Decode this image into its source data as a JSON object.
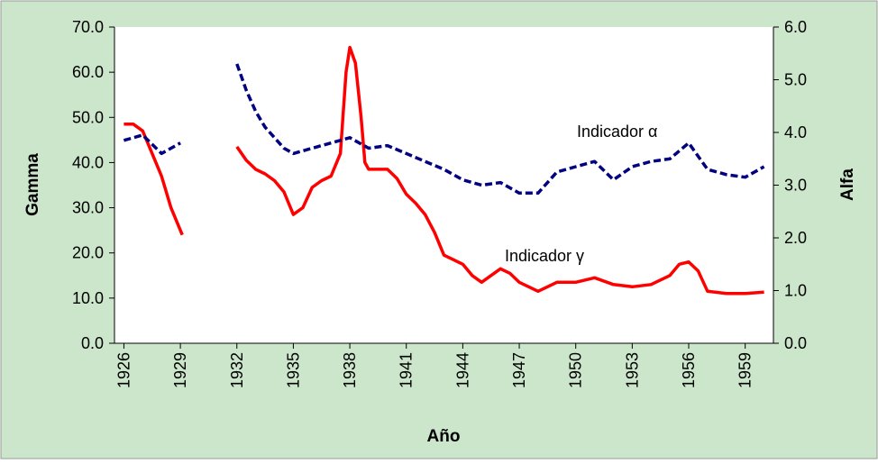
{
  "chart_data": {
    "type": "line",
    "x_label": "Año",
    "y_label": "Gamma",
    "y2_label": "Alfa",
    "xlim": [
      1925.5,
      1960.5
    ],
    "xticks": [
      1926,
      1929,
      1932,
      1935,
      1938,
      1941,
      1944,
      1947,
      1950,
      1953,
      1956,
      1959
    ],
    "ylim": [
      0,
      70
    ],
    "yticks": [
      {
        "value": 0,
        "label": "0.0"
      },
      {
        "value": 10,
        "label": "10.0"
      },
      {
        "value": 20,
        "label": "20.0"
      },
      {
        "value": 30,
        "label": "30.0"
      },
      {
        "value": 40,
        "label": "40.0"
      },
      {
        "value": 50,
        "label": "50.0"
      },
      {
        "value": 60,
        "label": "60.0"
      },
      {
        "value": 70,
        "label": "70.0"
      }
    ],
    "y2lim": [
      0,
      6
    ],
    "y2ticks": [
      {
        "value": 0,
        "label": "0.0"
      },
      {
        "value": 1,
        "label": "1.0"
      },
      {
        "value": 2,
        "label": "2.0"
      },
      {
        "value": 3,
        "label": "3.0"
      },
      {
        "value": 4,
        "label": "4.0"
      },
      {
        "value": 5,
        "label": "5.0"
      },
      {
        "value": 6,
        "label": "6.0"
      }
    ],
    "grid": false,
    "annotations": [
      {
        "text": "Indicador α"
      },
      {
        "text": "Indicador γ"
      }
    ],
    "series": [
      {
        "name": "Gamma",
        "color": "#ff0000",
        "dash": false,
        "x": [
          1926,
          1926.5,
          1927,
          1927.5,
          1928,
          1928.5,
          1929.1,
          1930.5,
          1932,
          1932.5,
          1933,
          1933.5,
          1934,
          1934.5,
          1935,
          1935.5,
          1936,
          1936.5,
          1937,
          1937.5,
          1937.8,
          1938,
          1938.3,
          1938.6,
          1938.8,
          1939,
          1939.5,
          1940,
          1940.5,
          1941,
          1941.5,
          1942,
          1942.5,
          1943,
          1943.5,
          1944,
          1944.5,
          1945,
          1945.5,
          1946,
          1946.5,
          1947,
          1947.5,
          1948,
          1948.5,
          1949,
          1950,
          1951,
          1952,
          1953,
          1954,
          1955,
          1955.5,
          1956,
          1956.5,
          1957,
          1958,
          1959,
          1960
        ],
        "values": [
          48.5,
          48.5,
          47,
          42,
          37,
          30,
          24,
          null,
          43.5,
          40.5,
          38.5,
          37.5,
          36,
          33.5,
          28.5,
          30,
          34.5,
          36,
          37,
          42,
          60,
          65.5,
          62,
          50,
          40,
          38.5,
          38.5,
          38.5,
          36.5,
          33,
          31,
          28.5,
          24.5,
          19.5,
          18.5,
          17.5,
          15,
          13.5,
          15,
          16.5,
          15.5,
          13.5,
          12.5,
          11.5,
          12.5,
          13.5,
          13.5,
          14.5,
          13,
          12.5,
          13,
          15,
          17.5,
          18,
          16,
          11.5,
          11,
          11,
          11.3
        ]
      },
      {
        "name": "Alfa",
        "color": "#000080",
        "dash": true,
        "axis": "y2",
        "x": [
          1926,
          1927,
          1928,
          1929,
          1930.5,
          1932,
          1932.5,
          1933,
          1933.5,
          1934,
          1934.5,
          1935,
          1936,
          1937,
          1938,
          1939,
          1940,
          1941,
          1942,
          1943,
          1944,
          1945,
          1946,
          1947,
          1948,
          1949,
          1950,
          1951,
          1952,
          1953,
          1954,
          1955,
          1956,
          1957,
          1958,
          1959,
          1960
        ],
        "values": [
          3.85,
          3.95,
          3.6,
          3.8,
          null,
          5.3,
          4.8,
          4.4,
          4.1,
          3.9,
          3.7,
          3.6,
          3.7,
          3.8,
          3.9,
          3.7,
          3.75,
          3.6,
          3.45,
          3.3,
          3.1,
          3.0,
          3.05,
          2.85,
          2.85,
          3.25,
          3.35,
          3.45,
          3.1,
          3.35,
          3.45,
          3.5,
          3.8,
          3.3,
          3.2,
          3.15,
          3.35
        ]
      }
    ]
  }
}
